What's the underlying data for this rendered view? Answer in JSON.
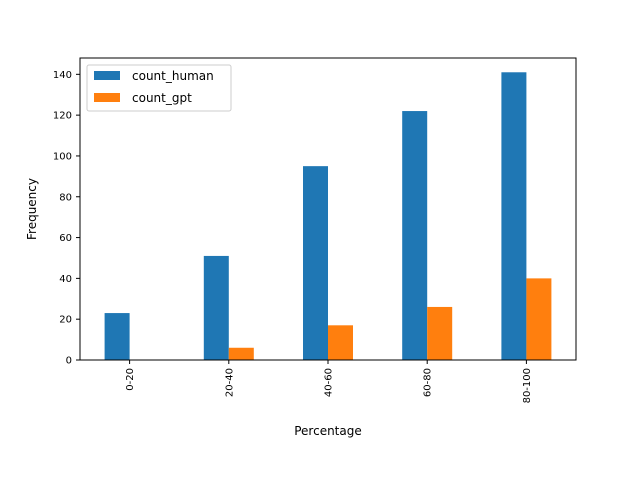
{
  "chart_data": {
    "type": "bar",
    "title": "",
    "xlabel": "Percentage",
    "ylabel": "Frequency",
    "categories": [
      "0-20",
      "20-40",
      "40-60",
      "60-80",
      "80-100"
    ],
    "series": [
      {
        "name": "count_human",
        "color": "#1f77b4",
        "values": [
          23,
          51,
          95,
          122,
          141
        ]
      },
      {
        "name": "count_gpt",
        "color": "#ff7f0e",
        "values": [
          0,
          6,
          17,
          26,
          40
        ]
      }
    ],
    "ylim": [
      0,
      148
    ],
    "yticks": [
      0,
      20,
      40,
      60,
      80,
      100,
      120,
      140
    ],
    "xtick_rotation": "vertical",
    "legend_position": "top-left",
    "grid": false
  }
}
